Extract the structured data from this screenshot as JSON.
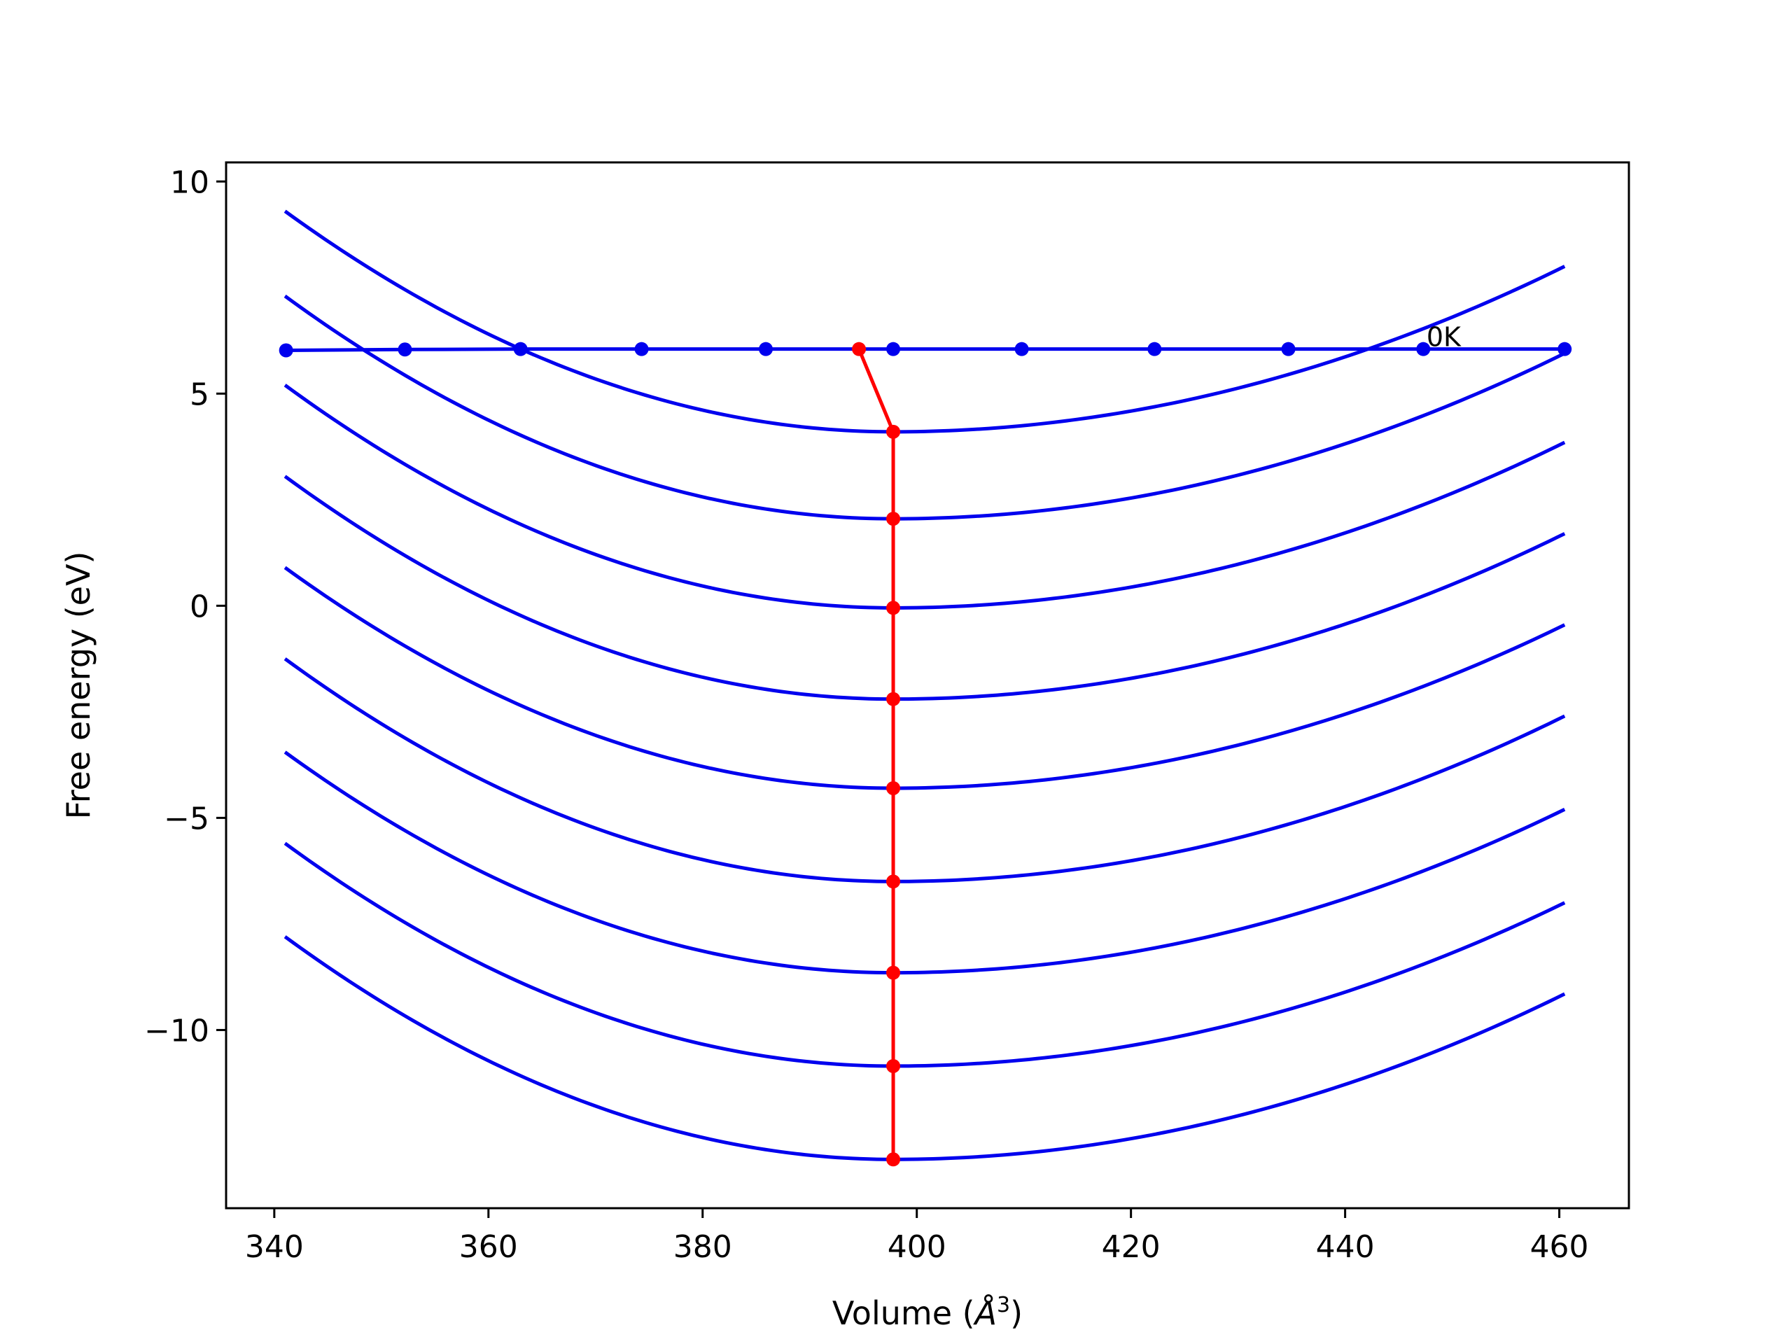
{
  "chart_data": {
    "type": "line",
    "title": "",
    "xlabel_main": "Volume (",
    "xlabel_unit": "Å",
    "xlabel_sup": "3",
    "xlabel_close": ")",
    "ylabel": "Free energy (eV)",
    "xlim": [
      335.5,
      466.5
    ],
    "ylim": [
      -14.2,
      10.45
    ],
    "xticks": [
      340,
      360,
      380,
      400,
      420,
      440,
      460
    ],
    "xtick_labels": [
      "340",
      "360",
      "380",
      "400",
      "420",
      "440",
      "460"
    ],
    "yticks": [
      -10,
      -5,
      0,
      5,
      10
    ],
    "ytick_labels": [
      "−10",
      "−5",
      "0",
      "5",
      "10"
    ],
    "grid": false,
    "legend": "none",
    "colors": {
      "curves": "#0000ee",
      "minima": "#ff0000",
      "frame": "#000000"
    },
    "curves": {
      "x_range": [
        341,
        460.5
      ],
      "vertex_x": 397.8,
      "minima": [
        4.1,
        2.05,
        -0.05,
        -2.2,
        -4.3,
        -6.5,
        -8.65,
        -10.85,
        -13.05
      ],
      "left_end": [
        9.3,
        7.3,
        5.2,
        3.05,
        0.9,
        -1.25,
        -3.45,
        -5.6,
        -7.8
      ],
      "right_end": [
        8.0,
        5.95,
        3.85,
        1.7,
        -0.45,
        -2.6,
        -4.8,
        -7.0,
        -9.15
      ]
    },
    "reference_line": {
      "label": "0K",
      "x": [
        341.1,
        352.2,
        363.0,
        374.3,
        385.9,
        397.8,
        409.8,
        422.2,
        434.7,
        447.3,
        460.5
      ],
      "y": [
        6.02,
        6.04,
        6.05,
        6.05,
        6.05,
        6.05,
        6.05,
        6.05,
        6.05,
        6.05,
        6.05
      ]
    },
    "minimum_path": {
      "x": [
        394.6,
        397.8,
        397.8,
        397.8,
        397.8,
        397.8,
        397.8,
        397.8,
        397.8,
        397.8
      ],
      "y": [
        6.05,
        4.1,
        2.05,
        -0.05,
        -2.2,
        -4.3,
        -6.5,
        -8.65,
        -10.85,
        -13.05
      ]
    }
  }
}
